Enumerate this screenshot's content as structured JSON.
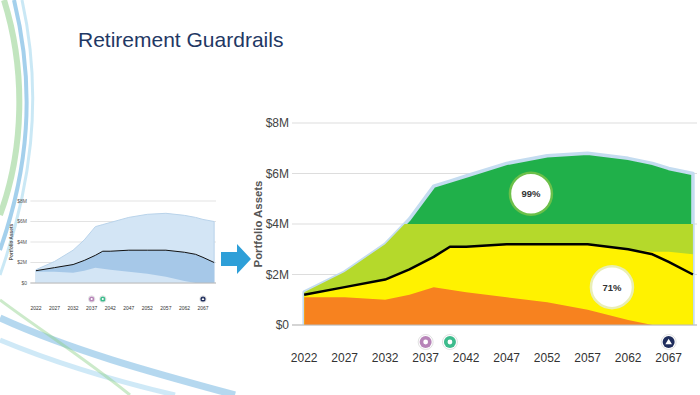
{
  "page": {
    "title": "Retirement Guardrails"
  },
  "chart_data": [
    {
      "type": "area",
      "y_label": "Portfolio Assets",
      "x": [
        2022,
        2027,
        2032,
        2035,
        2038,
        2040,
        2042,
        2047,
        2052,
        2057,
        2062,
        2065,
        2067,
        2070
      ],
      "series": [
        {
          "type": "area",
          "color": "#d3e5f5",
          "values": [
            1.3,
            2.1,
            3.2,
            4.2,
            5.5,
            5.7,
            5.9,
            6.4,
            6.7,
            6.8,
            6.6,
            6.4,
            6.2,
            6.0
          ]
        },
        {
          "type": "area",
          "color": "#a6c8e8",
          "values": [
            1.2,
            1.5,
            1.8,
            2.2,
            2.7,
            3.1,
            3.1,
            3.2,
            3.2,
            3.2,
            3.0,
            2.8,
            2.5,
            2.0
          ]
        },
        {
          "type": "area",
          "color": "#d3e5f5",
          "values": [
            1.1,
            1.1,
            1.0,
            1.2,
            1.5,
            1.4,
            1.3,
            1.1,
            0.9,
            0.6,
            0.2,
            0,
            0,
            0
          ]
        },
        {
          "type": "line",
          "color": "#111111",
          "values": [
            1.2,
            1.5,
            1.8,
            2.2,
            2.7,
            3.1,
            3.1,
            3.2,
            3.2,
            3.2,
            3.0,
            2.8,
            2.5,
            2.0
          ]
        }
      ],
      "xlim": [
        2020.5,
        2070.5
      ],
      "ylim": [
        0,
        8
      ],
      "xticks": [
        2022,
        2027,
        2032,
        2037,
        2042,
        2047,
        2052,
        2057,
        2062,
        2067
      ],
      "yticks": [
        {
          "value": 0,
          "label": "$0"
        },
        {
          "value": 2,
          "label": "$2M"
        },
        {
          "value": 4,
          "label": "$4M"
        },
        {
          "value": 6,
          "label": "$6M"
        },
        {
          "value": 8,
          "label": "$8M"
        }
      ],
      "grid": true,
      "events": [
        {
          "x": 2037,
          "color": "#b784b8",
          "marker": "circle"
        },
        {
          "x": 2040,
          "color": "#3dbb8c",
          "marker": "circle"
        },
        {
          "x": 2067,
          "color": "#1f2d5c",
          "marker": "triangle"
        }
      ]
    },
    {
      "type": "area",
      "y_label": "Portfolio Assets",
      "x": [
        2022,
        2027,
        2032,
        2035,
        2038,
        2040,
        2042,
        2047,
        2052,
        2057,
        2062,
        2065,
        2067,
        2070
      ],
      "series": [
        {
          "type": "area",
          "color": "#20b04a",
          "values": [
            1.3,
            2.1,
            3.2,
            4.2,
            5.5,
            5.7,
            5.9,
            6.4,
            6.7,
            6.8,
            6.6,
            6.4,
            6.2,
            6.0
          ]
        },
        {
          "type": "area",
          "color": "#b5d92b",
          "values": [
            4,
            4,
            4,
            4,
            4,
            4,
            4,
            4,
            4,
            4,
            4,
            4,
            4,
            4
          ]
        },
        {
          "type": "area",
          "color": "#fff200",
          "values": [
            1.2,
            1.5,
            1.8,
            2.2,
            2.7,
            3.1,
            3.1,
            3.2,
            3.2,
            3.2,
            3.0,
            2.9,
            2.9,
            2.8
          ]
        },
        {
          "type": "area",
          "color": "#f7821f",
          "values": [
            1.1,
            1.1,
            1.0,
            1.2,
            1.5,
            1.4,
            1.3,
            1.1,
            0.9,
            0.6,
            0.2,
            0,
            0,
            0
          ]
        },
        {
          "type": "line",
          "color": "#000000",
          "values": [
            1.2,
            1.5,
            1.8,
            2.2,
            2.7,
            3.1,
            3.1,
            3.2,
            3.2,
            3.2,
            3.0,
            2.8,
            2.5,
            2.0
          ]
        }
      ],
      "xlim": [
        2020.5,
        2070.5
      ],
      "ylim": [
        0,
        8
      ],
      "xticks": [
        2022,
        2027,
        2032,
        2037,
        2042,
        2047,
        2052,
        2057,
        2062,
        2067
      ],
      "yticks": [
        {
          "value": 0,
          "label": "$0"
        },
        {
          "value": 2,
          "label": "$2M"
        },
        {
          "value": 4,
          "label": "$4M"
        },
        {
          "value": 6,
          "label": "$6M"
        },
        {
          "value": 8,
          "label": "$8M"
        }
      ],
      "grid": true,
      "annotations": [
        {
          "text": "99%",
          "x": 2050,
          "y": 5.2
        },
        {
          "text": "71%",
          "x": 2060,
          "y": 1.5
        }
      ],
      "events": [
        {
          "x": 2037,
          "color": "#b784b8",
          "marker": "circle"
        },
        {
          "x": 2040,
          "color": "#3dbb8c",
          "marker": "circle"
        },
        {
          "x": 2067,
          "color": "#1f2d5c",
          "marker": "triangle"
        }
      ]
    }
  ]
}
